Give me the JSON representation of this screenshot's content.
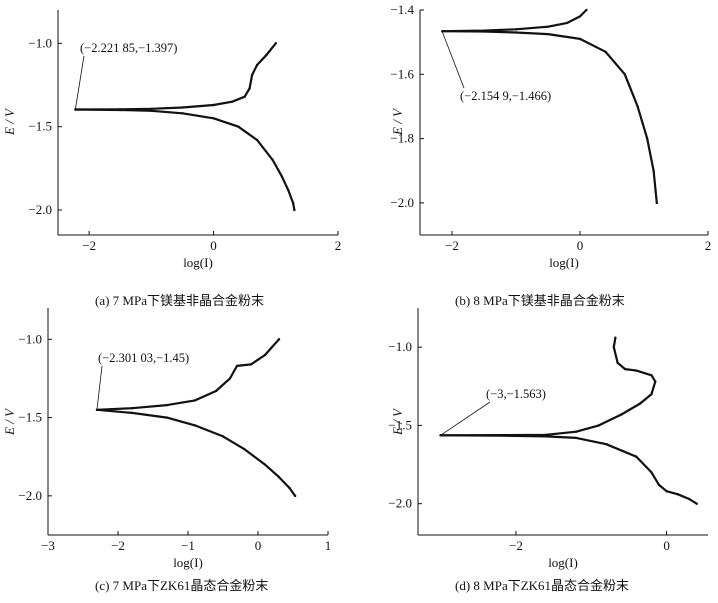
{
  "chart_data": [
    {
      "type": "line",
      "xlabel": "log(I)",
      "ylabel": "E / V",
      "xlim": [
        -2.5,
        2
      ],
      "ylim": [
        -2.15,
        -0.8
      ],
      "xticks": [
        "−2",
        "0",
        "2"
      ],
      "yticks": [
        "−1.0",
        "−1.5",
        "−2.0"
      ],
      "annotation": {
        "text": "(−2.221 85,−1.397)",
        "x": -2.22185,
        "y": -1.397
      },
      "caption": "(a)  7 MPa下镁基非晶合金粉末",
      "series": [
        {
          "values": [
            [
              -2.22,
              -1.397
            ],
            [
              -1.5,
              -1.396
            ],
            [
              -1.0,
              -1.393
            ],
            [
              -0.5,
              -1.385
            ],
            [
              0.0,
              -1.37
            ],
            [
              0.3,
              -1.35
            ],
            [
              0.5,
              -1.32
            ],
            [
              0.58,
              -1.27
            ],
            [
              0.62,
              -1.19
            ],
            [
              0.7,
              -1.13
            ],
            [
              0.85,
              -1.07
            ],
            [
              1.0,
              -1.0
            ]
          ]
        },
        {
          "values": [
            [
              -2.22,
              -1.397
            ],
            [
              -1.5,
              -1.4
            ],
            [
              -1.0,
              -1.405
            ],
            [
              -0.5,
              -1.42
            ],
            [
              0.0,
              -1.45
            ],
            [
              0.4,
              -1.5
            ],
            [
              0.7,
              -1.58
            ],
            [
              0.95,
              -1.7
            ],
            [
              1.1,
              -1.8
            ],
            [
              1.2,
              -1.88
            ],
            [
              1.28,
              -1.96
            ],
            [
              1.3,
              -2.0
            ]
          ]
        }
      ]
    },
    {
      "type": "line",
      "xlabel": "log(I)",
      "ylabel": "E / V",
      "xlim": [
        -2.5,
        2
      ],
      "ylim": [
        -2.1,
        -1.4
      ],
      "xticks": [
        "−2",
        "0",
        "2"
      ],
      "yticks": [
        "−1.4",
        "−1.6",
        "−1.8",
        "−2.0"
      ],
      "annotation": {
        "text": "(−2.154 9,−1.466)",
        "x": -2.1549,
        "y": -1.466
      },
      "caption": "(b)  8 MPa下镁基非晶合金粉末",
      "series": [
        {
          "values": [
            [
              -2.15,
              -1.466
            ],
            [
              -1.5,
              -1.464
            ],
            [
              -1.0,
              -1.46
            ],
            [
              -0.5,
              -1.452
            ],
            [
              -0.2,
              -1.44
            ],
            [
              0.0,
              -1.42
            ],
            [
              0.1,
              -1.4
            ]
          ]
        },
        {
          "values": [
            [
              -2.15,
              -1.466
            ],
            [
              -1.5,
              -1.467
            ],
            [
              -1.0,
              -1.47
            ],
            [
              -0.5,
              -1.475
            ],
            [
              0.0,
              -1.49
            ],
            [
              0.4,
              -1.53
            ],
            [
              0.7,
              -1.6
            ],
            [
              0.9,
              -1.7
            ],
            [
              1.05,
              -1.8
            ],
            [
              1.15,
              -1.9
            ],
            [
              1.2,
              -2.0
            ]
          ]
        }
      ]
    },
    {
      "type": "line",
      "xlabel": "log(I)",
      "ylabel": "E / V",
      "xlim": [
        -3,
        1
      ],
      "ylim": [
        -2.25,
        -0.8
      ],
      "xticks": [
        "−3",
        "−2",
        "−1",
        "0",
        "1"
      ],
      "yticks": [
        "−1.0",
        "−1.5",
        "−2.0"
      ],
      "annotation": {
        "text": "(−2.301 03,−1.45)",
        "x": -2.30103,
        "y": -1.45
      },
      "caption": "(c)  7 MPa下ZK61晶态合金粉末",
      "series": [
        {
          "values": [
            [
              -2.3,
              -1.45
            ],
            [
              -1.8,
              -1.44
            ],
            [
              -1.3,
              -1.42
            ],
            [
              -0.9,
              -1.39
            ],
            [
              -0.6,
              -1.33
            ],
            [
              -0.4,
              -1.25
            ],
            [
              -0.3,
              -1.17
            ],
            [
              -0.1,
              -1.16
            ],
            [
              0.1,
              -1.1
            ],
            [
              0.2,
              -1.05
            ],
            [
              0.3,
              -1.0
            ]
          ]
        },
        {
          "values": [
            [
              -2.3,
              -1.45
            ],
            [
              -1.8,
              -1.47
            ],
            [
              -1.3,
              -1.5
            ],
            [
              -0.9,
              -1.55
            ],
            [
              -0.5,
              -1.62
            ],
            [
              -0.2,
              -1.7
            ],
            [
              0.1,
              -1.8
            ],
            [
              0.3,
              -1.88
            ],
            [
              0.45,
              -1.95
            ],
            [
              0.53,
              -2.0
            ]
          ]
        }
      ]
    },
    {
      "type": "line",
      "xlabel": "log(I)",
      "ylabel": "E / V",
      "xlim": [
        -3.3,
        0.55
      ],
      "ylim": [
        -2.2,
        -0.75
      ],
      "xticks": [
        "−2",
        "0"
      ],
      "yticks": [
        "−1.0",
        "−1.5",
        "−2.0"
      ],
      "annotation": {
        "text": "(−3,−1.563)",
        "x": -3,
        "y": -1.563
      },
      "caption": "(d)  8 MPa下ZK61晶态合金粉末",
      "series": [
        {
          "values": [
            [
              -3.0,
              -1.563
            ],
            [
              -2.2,
              -1.562
            ],
            [
              -1.6,
              -1.56
            ],
            [
              -1.2,
              -1.54
            ],
            [
              -0.9,
              -1.5
            ],
            [
              -0.6,
              -1.43
            ],
            [
              -0.35,
              -1.36
            ],
            [
              -0.2,
              -1.3
            ],
            [
              -0.15,
              -1.22
            ],
            [
              -0.2,
              -1.18
            ],
            [
              -0.4,
              -1.15
            ],
            [
              -0.55,
              -1.14
            ],
            [
              -0.65,
              -1.1
            ],
            [
              -0.7,
              -1.0
            ],
            [
              -0.68,
              -0.94
            ]
          ]
        },
        {
          "values": [
            [
              -3.0,
              -1.563
            ],
            [
              -2.2,
              -1.565
            ],
            [
              -1.6,
              -1.57
            ],
            [
              -1.2,
              -1.58
            ],
            [
              -0.8,
              -1.62
            ],
            [
              -0.4,
              -1.7
            ],
            [
              -0.2,
              -1.8
            ],
            [
              -0.1,
              -1.88
            ],
            [
              0.0,
              -1.92
            ],
            [
              0.15,
              -1.94
            ],
            [
              0.3,
              -1.97
            ],
            [
              0.4,
              -2.0
            ]
          ]
        }
      ]
    }
  ]
}
